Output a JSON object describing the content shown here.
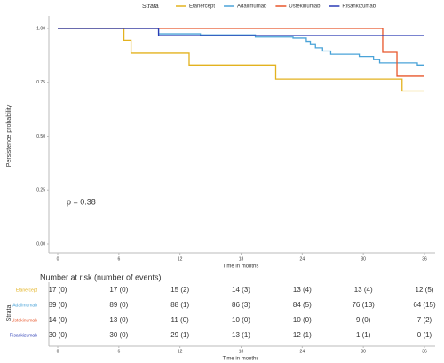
{
  "chart_data": {
    "type": "step",
    "legend_title": "Strata",
    "xlabel": "Time in months",
    "ylabel": "Persistence probability",
    "annotation": "p = 0.38",
    "xlim": [
      0,
      36
    ],
    "xticks": [
      0,
      6,
      12,
      18,
      24,
      30,
      36
    ],
    "ylim": [
      0,
      1
    ],
    "yticks": [
      {
        "value": 0,
        "label": "0.00"
      },
      {
        "value": 0.25,
        "label": "0.25"
      },
      {
        "value": 0.5,
        "label": "0.50"
      },
      {
        "value": 0.75,
        "label": "0.75"
      },
      {
        "value": 1,
        "label": "1.00"
      }
    ],
    "series": [
      {
        "name": "Etanercept",
        "color": "#e3b21f",
        "x": [
          0,
          6.5,
          7.2,
          12.9,
          21.4,
          33.8,
          36
        ],
        "values": [
          1,
          0.945,
          0.885,
          0.83,
          0.765,
          0.71,
          0.71
        ]
      },
      {
        "name": "Adalimumab",
        "color": "#4aa3d8",
        "x": [
          0,
          9.9,
          14,
          19.4,
          23.1,
          24.4,
          24.8,
          25.3,
          26,
          26.8,
          29.6,
          31,
          31.6,
          35.3,
          36
        ],
        "values": [
          1,
          0.975,
          0.97,
          0.96,
          0.955,
          0.94,
          0.925,
          0.91,
          0.895,
          0.88,
          0.87,
          0.855,
          0.84,
          0.83,
          0.83
        ]
      },
      {
        "name": "Ustekinumab",
        "color": "#e8562b",
        "x": [
          0,
          31.9,
          33.3,
          36
        ],
        "values": [
          1,
          0.889,
          0.778,
          0.778
        ]
      },
      {
        "name": "Risankizumab",
        "color": "#2a3bb5",
        "x": [
          0,
          9.9,
          36
        ],
        "values": [
          1,
          0.967,
          0.967
        ]
      }
    ]
  },
  "risk_table": {
    "title": "Number at risk (number of events)",
    "ylabel": "Strata",
    "xlabel": "Time in months",
    "xticks": [
      0,
      6,
      12,
      18,
      24,
      30,
      36
    ],
    "rows": [
      {
        "label": "Etanercept",
        "color": "#e3b21f",
        "cells": [
          "17 (0)",
          "17 (0)",
          "15 (2)",
          "14 (3)",
          "13 (4)",
          "13 (4)",
          "12 (5)"
        ]
      },
      {
        "label": "Adalimumab",
        "color": "#4aa3d8",
        "cells": [
          "89 (0)",
          "89 (0)",
          "88 (1)",
          "86 (3)",
          "84 (5)",
          "76 (13)",
          "64 (15)"
        ]
      },
      {
        "label": "Ustekinumab",
        "color": "#e8562b",
        "cells": [
          "14 (0)",
          "13 (0)",
          "11 (0)",
          "10 (0)",
          "10 (0)",
          "9 (0)",
          "7 (2)"
        ]
      },
      {
        "label": "Risankizumab",
        "color": "#2a3bb5",
        "cells": [
          "30 (0)",
          "30 (0)",
          "29 (1)",
          "13 (1)",
          "12 (1)",
          "1 (1)",
          "0 (1)"
        ]
      }
    ]
  }
}
